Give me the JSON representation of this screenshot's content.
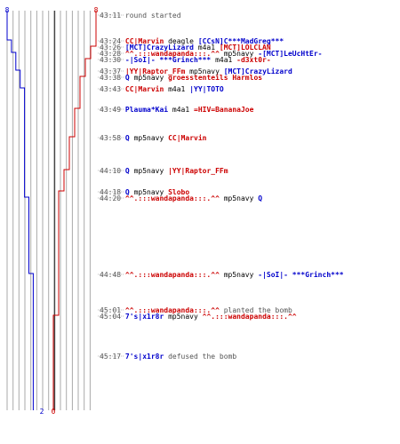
{
  "colors": {
    "team_a": "#0000cc",
    "team_b": "#cc0000",
    "time": "#555555",
    "event": "#555555",
    "plain": "#000000",
    "grid": "#aaaaaa",
    "center_line": "#444444",
    "connector": "#bbbbbb"
  },
  "scores": {
    "start_a": "8",
    "start_b": "8",
    "end_a": "2",
    "end_b": "0"
  },
  "grid_lines": 15,
  "log": [
    {
      "time": "43:11",
      "parts": [
        {
          "t": "round started",
          "c": "event"
        }
      ]
    },
    {
      "time": "43:24",
      "parts": [
        {
          "t": "CC|Marvin",
          "c": "team_b"
        },
        {
          "t": " deagle ",
          "c": "plain"
        },
        {
          "t": "[CCsN]C***MadGreg***",
          "c": "team_a"
        }
      ]
    },
    {
      "time": "43:26",
      "parts": [
        {
          "t": "[MCT]CrazyLizard",
          "c": "team_a"
        },
        {
          "t": " m4a1 ",
          "c": "plain"
        },
        {
          "t": "[MCT]LOLCLAN",
          "c": "team_b"
        }
      ]
    },
    {
      "time": "43:28",
      "parts": [
        {
          "t": "^^.:::wandapanda:::.^^",
          "c": "team_b"
        },
        {
          "t": " mp5navy ",
          "c": "plain"
        },
        {
          "t": "-[MCT]LeUcHtEr-",
          "c": "team_a"
        }
      ]
    },
    {
      "time": "43:30",
      "parts": [
        {
          "t": "-|SoI|- ***Grinch***",
          "c": "team_a"
        },
        {
          "t": " m4a1 ",
          "c": "plain"
        },
        {
          "t": "-d3xt0r-",
          "c": "team_b"
        }
      ]
    },
    {
      "time": "43:37",
      "parts": [
        {
          "t": "|YY|Raptor_FFm",
          "c": "team_b"
        },
        {
          "t": " mp5navy ",
          "c": "plain"
        },
        {
          "t": "[MCT]CrazyLizard",
          "c": "team_a"
        }
      ]
    },
    {
      "time": "43:38",
      "parts": [
        {
          "t": "Q",
          "c": "team_a"
        },
        {
          "t": " mp5navy ",
          "c": "plain"
        },
        {
          "t": "groesstenteils Harmlos",
          "c": "team_b"
        }
      ]
    },
    {
      "time": "43:43",
      "parts": [
        {
          "t": "CC|Marvin",
          "c": "team_b"
        },
        {
          "t": " m4a1 ",
          "c": "plain"
        },
        {
          "t": "|YY|TOTO",
          "c": "team_a"
        }
      ]
    },
    {
      "time": "43:49",
      "parts": [
        {
          "t": "Plauma*Kai",
          "c": "team_a"
        },
        {
          "t": " m4a1 ",
          "c": "plain"
        },
        {
          "t": "=HIV=BananaJoe",
          "c": "team_b"
        }
      ]
    },
    {
      "time": "43:58",
      "parts": [
        {
          "t": "Q",
          "c": "team_a"
        },
        {
          "t": " mp5navy ",
          "c": "plain"
        },
        {
          "t": "CC|Marvin",
          "c": "team_b"
        }
      ]
    },
    {
      "time": "44:10",
      "parts": [
        {
          "t": "Q",
          "c": "team_a"
        },
        {
          "t": " mp5navy ",
          "c": "plain"
        },
        {
          "t": "|YY|Raptor_FFm",
          "c": "team_b"
        }
      ]
    },
    {
      "time": "44:18",
      "parts": [
        {
          "t": "Q",
          "c": "team_a"
        },
        {
          "t": " mp5navy ",
          "c": "plain"
        },
        {
          "t": "Slobo",
          "c": "team_b"
        }
      ]
    },
    {
      "time": "44:20",
      "parts": [
        {
          "t": "^^.:::wandapanda:::.^^",
          "c": "team_b"
        },
        {
          "t": " mp5navy ",
          "c": "plain"
        },
        {
          "t": "Q",
          "c": "team_a"
        }
      ]
    },
    {
      "time": "44:48",
      "parts": [
        {
          "t": "^^.:::wandapanda:::.^^",
          "c": "team_b"
        },
        {
          "t": " mp5navy ",
          "c": "plain"
        },
        {
          "t": "-|SoI|- ***Grinch***",
          "c": "team_a"
        }
      ]
    },
    {
      "time": "45:01",
      "parts": [
        {
          "t": "^^.:::wandapanda:::.^^",
          "c": "team_b"
        },
        {
          "t": " planted the bomb",
          "c": "event"
        }
      ]
    },
    {
      "time": "45:04",
      "parts": [
        {
          "t": "7's|x1r8r",
          "c": "team_a"
        },
        {
          "t": " mp5navy ",
          "c": "plain"
        },
        {
          "t": "^^.:::wandapanda:::.^^",
          "c": "team_b"
        }
      ]
    },
    {
      "time": "45:17",
      "parts": [
        {
          "t": "7's|x1r8r",
          "c": "team_a"
        },
        {
          "t": " defused the bomb",
          "c": "event"
        }
      ]
    }
  ]
}
